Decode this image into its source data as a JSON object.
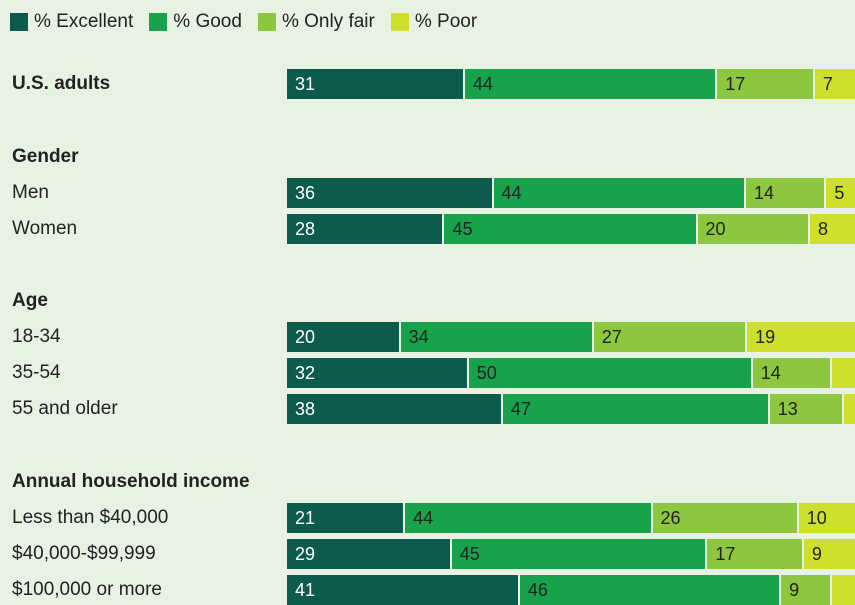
{
  "legend": [
    {
      "label": "% Excellent",
      "color": "#0d5b4c"
    },
    {
      "label": "% Good",
      "color": "#19a24c"
    },
    {
      "label": "% Only fair",
      "color": "#8dc63f"
    },
    {
      "label": "% Poor",
      "color": "#cfe02c"
    }
  ],
  "chart_data": {
    "type": "bar",
    "orientation": "horizontal",
    "stacked": true,
    "series_names": [
      "% Excellent",
      "% Good",
      "% Only fair",
      "% Poor"
    ],
    "rows": [
      {
        "label": "U.S. adults",
        "bold": true,
        "values": [
          31,
          44,
          17,
          7
        ],
        "labels": [
          "31",
          "44",
          "17",
          "7"
        ]
      },
      {
        "label": "Gender",
        "heading": true
      },
      {
        "label": "Men",
        "values": [
          36,
          44,
          14,
          5
        ],
        "labels": [
          "36",
          "44",
          "14",
          "5"
        ]
      },
      {
        "label": "Women",
        "values": [
          28,
          45,
          20,
          8
        ],
        "labels": [
          "28",
          "45",
          "20",
          "8"
        ]
      },
      {
        "label": "Age",
        "heading": true
      },
      {
        "label": "18-34",
        "values": [
          20,
          34,
          27,
          19
        ],
        "labels": [
          "20",
          "34",
          "27",
          "19"
        ]
      },
      {
        "label": "35-54",
        "values": [
          32,
          50,
          14,
          4
        ],
        "labels": [
          "32",
          "50",
          "14",
          ""
        ]
      },
      {
        "label": "55 and older",
        "values": [
          38,
          47,
          13,
          2
        ],
        "labels": [
          "38",
          "47",
          "13",
          ""
        ]
      },
      {
        "label": "Annual household income",
        "heading": true
      },
      {
        "label": "Less than $40,000",
        "values": [
          21,
          44,
          26,
          10
        ],
        "labels": [
          "21",
          "44",
          "26",
          "10"
        ]
      },
      {
        "label": "$40,000-$99,999",
        "values": [
          29,
          45,
          17,
          9
        ],
        "labels": [
          "29",
          "45",
          "17",
          "9"
        ]
      },
      {
        "label": "$100,000 or more",
        "values": [
          41,
          46,
          9,
          4
        ],
        "labels": [
          "41",
          "46",
          "9",
          ""
        ]
      }
    ]
  }
}
